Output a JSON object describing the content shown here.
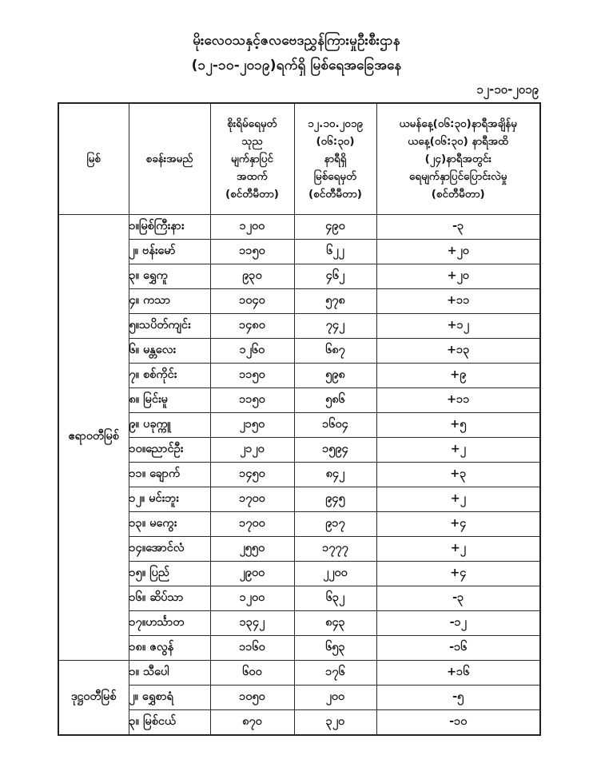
{
  "page": {
    "title_line1": "မိုးလေဝသနှင့်ဇလဗေဒညွှန်ကြားမှုဦးစီးဌာန",
    "title_line2": "(၁၂-၁၀-၂၀၁၉)ရက်ရှိ မြစ်ရေအခြေအနေ",
    "date": "၁၂-၁၀-၂၀၁၉"
  },
  "table": {
    "headers": {
      "river": "မြစ်",
      "station": "စခန်းအမည်",
      "danger_level": "စိုးရိမ်ရေမှတ်\nသုည\nမျက်နှာပြင်\nအထက်\n(စင်တီမီတာ)",
      "current_level": "၁၂.၁၀.၂၀၁၉\n(၀၆:၃၀)\nနာရီရှိ\nမြစ်ရေမှတ်\n(စင်တီမီတာ)",
      "change_24h": "ယမန်နေ့(၀၆:၃၀)နာရီအချိန်မှ\nယနေ့(၀၆:၃၀) နာရီအထိ\n(၂၄)နာရီအတွင်း\nရေမျက်နှာပြင်ပြောင်းလဲမှု\n(စင်တီမီတာ)"
    },
    "groups": [
      {
        "river": "ဧရာဝတီမြစ်",
        "rows": [
          {
            "station": "၁။မြစ်ကြီးနား",
            "danger": "၁၂၀၀",
            "level": "၄၉၀",
            "change": "-၃"
          },
          {
            "station": "၂။ ဗန်းမော်",
            "danger": "၁၁၅၀",
            "level": "၆၂၂",
            "change": "+၂၀"
          },
          {
            "station": "၃။ ရွှေကူ",
            "danger": "၉၃၀",
            "level": "၄၆၂",
            "change": "+၂၀"
          },
          {
            "station": "၄။ ကသာ",
            "danger": "၁၀၄၀",
            "level": "၅၇၈",
            "change": "+၁၁"
          },
          {
            "station": "၅။သပိတ်ကျင်း",
            "danger": "၁၄၈၀",
            "level": "၇၄၂",
            "change": "+၁၂"
          },
          {
            "station": "၆။ မန္တလေး",
            "danger": "၁၂၆၀",
            "level": "၆၈၇",
            "change": "+၁၃"
          },
          {
            "station": "၇။ စစ်ကိုင်း",
            "danger": "၁၁၅၀",
            "level": "၅၉၈",
            "change": "+၉"
          },
          {
            "station": "၈။ မြင်းမူ",
            "danger": "၁၁၅၀",
            "level": "၅၈၆",
            "change": "+၁၁"
          },
          {
            "station": "၉။ ပခုက္ကူ",
            "danger": "၂၁၅၀",
            "level": "၁၆၀၄",
            "change": "+၅"
          },
          {
            "station": "၁၀။ညောင်ဦး",
            "danger": "၂၁၂၀",
            "level": "၁၅၉၄",
            "change": "+၂"
          },
          {
            "station": "၁၁။ ချောက်",
            "danger": "၁၄၅၀",
            "level": "၈၄၂",
            "change": "+၃"
          },
          {
            "station": "၁၂။ မင်းဘူး",
            "danger": "၁၇၀၀",
            "level": "၉၄၅",
            "change": "+၂"
          },
          {
            "station": "၁၃။ မကွေး",
            "danger": "၁၇၀၀",
            "level": "၉၁၇",
            "change": "+၄"
          },
          {
            "station": "၁၄။အောင်လံ",
            "danger": "၂၅၅၀",
            "level": "၁၇၇၇",
            "change": "+၂"
          },
          {
            "station": "၁၅။ ပြည်",
            "danger": "၂၉၀၀",
            "level": "၂၂၀၀",
            "change": "+၄"
          },
          {
            "station": "၁၆။ ဆိပ်သာ",
            "danger": "၁၂၀၀",
            "level": "၆၃၂",
            "change": "-၃"
          },
          {
            "station": "၁၇။ဟင်္သာတ",
            "danger": "၁၃၄၂",
            "level": "၈၄၃",
            "change": "-၁၂"
          },
          {
            "station": "၁၈။ ဇလွန်",
            "danger": "၁၁၆၀",
            "level": "၆၅၃",
            "change": "-၁၆"
          }
        ]
      },
      {
        "river": "ဒုဋ္ဌဝတီမြစ်",
        "rows": [
          {
            "station": "၁။ သီပေါ",
            "danger": "၆၀၀",
            "level": "၁၇၆",
            "change": "+၁၆"
          },
          {
            "station": "၂။ ရွှေစာရံ",
            "danger": "၁၀၅၀",
            "level": "၂၀၀",
            "change": "-၅"
          },
          {
            "station": "၃။ မြစ်ငယ်",
            "danger": "၈၇၀",
            "level": "၃၂၀",
            "change": "-၁၀"
          }
        ]
      }
    ]
  }
}
